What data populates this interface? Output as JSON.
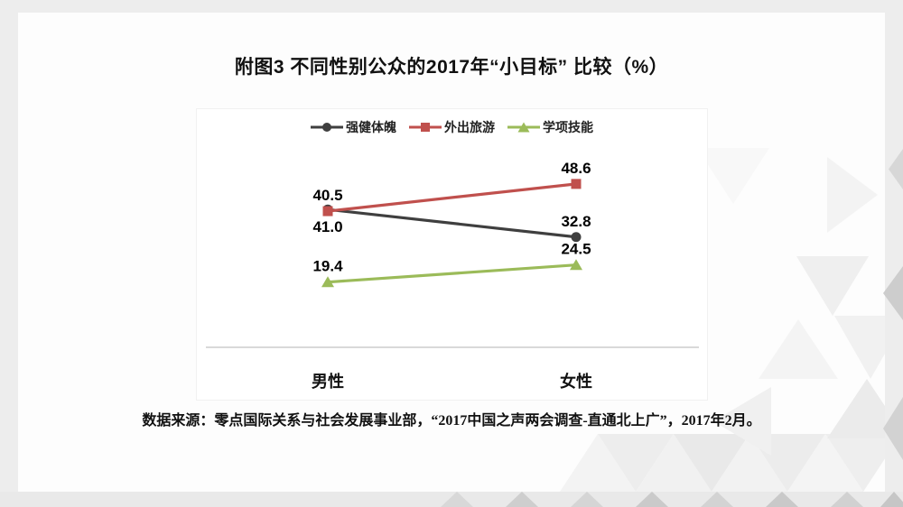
{
  "slide": {
    "title": "附图3 不同性别公众的2017年“小目标” 比较（%）",
    "source_note": "数据来源：零点国际关系与社会发展事业部，“2017中国之声两会调查-直通北上广”，2017年2月。"
  },
  "chart_data": {
    "type": "line",
    "title": "附图3 不同性别公众的2017年“小目标” 比较（%）",
    "categories": [
      "男性",
      "女性"
    ],
    "series": [
      {
        "name": "强健体魄",
        "values": [
          41.0,
          32.8
        ],
        "color": "#3f3f3f",
        "marker": "circle",
        "label_positions": [
          "below",
          "above"
        ]
      },
      {
        "name": "外出旅游",
        "values": [
          40.5,
          48.6
        ],
        "color": "#c0504d",
        "marker": "square",
        "label_positions": [
          "above",
          "above"
        ]
      },
      {
        "name": "学项技能",
        "values": [
          19.4,
          24.5
        ],
        "color": "#9bbb59",
        "marker": "triangle",
        "label_positions": [
          "above",
          "above"
        ]
      }
    ],
    "ylim": [
      0,
      60
    ],
    "grid": false,
    "legend_position": "top",
    "axis_line_color": "#d9d9d9",
    "data_label_decimals": 1
  }
}
